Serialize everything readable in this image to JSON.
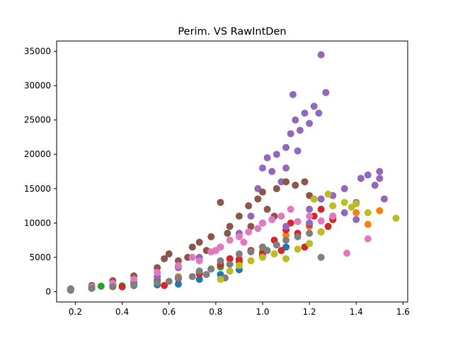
{
  "chart_data": {
    "type": "scatter",
    "title": "Perim. VS RawIntDen",
    "xlabel": "",
    "ylabel": "",
    "xlim": [
      0.12,
      1.62
    ],
    "ylim": [
      -1500,
      36500
    ],
    "xticks": [
      0.2,
      0.4,
      0.6,
      0.8,
      1.0,
      1.2,
      1.4,
      1.6
    ],
    "xtick_labels": [
      "0.2",
      "0.4",
      "0.6",
      "0.8",
      "1.0",
      "1.2",
      "1.4",
      "1.6"
    ],
    "yticks": [
      0,
      5000,
      10000,
      15000,
      20000,
      25000,
      30000,
      35000
    ],
    "ytick_labels": [
      "0",
      "5000",
      "10000",
      "15000",
      "20000",
      "25000",
      "30000",
      "35000"
    ],
    "grid": false,
    "legend": "none",
    "series": [
      {
        "color": "#1f77b4",
        "points": [
          [
            0.18,
            250
          ],
          [
            0.27,
            500
          ],
          [
            0.36,
            800
          ],
          [
            0.45,
            900
          ],
          [
            0.55,
            1000
          ],
          [
            0.64,
            1100
          ],
          [
            0.73,
            1800
          ],
          [
            0.82,
            2500
          ],
          [
            0.9,
            3200
          ],
          [
            1.0,
            5200
          ],
          [
            1.1,
            6500
          ],
          [
            1.2,
            7000
          ]
        ]
      },
      {
        "color": "#ff7f0e",
        "points": [
          [
            0.18,
            300
          ],
          [
            0.27,
            600
          ],
          [
            0.36,
            900
          ],
          [
            0.45,
            1200
          ],
          [
            0.55,
            1800
          ],
          [
            0.64,
            2200
          ],
          [
            0.73,
            2800
          ],
          [
            0.82,
            3800
          ],
          [
            0.9,
            4800
          ],
          [
            1.0,
            6500
          ],
          [
            1.1,
            8200
          ],
          [
            1.2,
            9500
          ],
          [
            1.3,
            10500
          ],
          [
            1.4,
            11500
          ],
          [
            1.45,
            9800
          ],
          [
            1.5,
            11800
          ]
        ]
      },
      {
        "color": "#2ca02c",
        "points": [
          [
            0.18,
            350
          ],
          [
            0.27,
            650
          ],
          [
            0.31,
            800
          ],
          [
            0.36,
            1000
          ],
          [
            0.4,
            850
          ],
          [
            0.45,
            1300
          ],
          [
            0.55,
            1600
          ],
          [
            0.64,
            2000
          ],
          [
            0.73,
            2700
          ],
          [
            0.82,
            3600
          ],
          [
            0.9,
            4300
          ],
          [
            1.0,
            5800
          ]
        ]
      },
      {
        "color": "#d62728",
        "points": [
          [
            0.18,
            300
          ],
          [
            0.27,
            550
          ],
          [
            0.36,
            850
          ],
          [
            0.4,
            700
          ],
          [
            0.45,
            1100
          ],
          [
            0.55,
            1500
          ],
          [
            0.58,
            900
          ],
          [
            0.64,
            1900
          ],
          [
            0.73,
            2600
          ],
          [
            0.78,
            3300
          ],
          [
            0.82,
            4000
          ],
          [
            0.86,
            4800
          ],
          [
            0.9,
            4600
          ],
          [
            0.95,
            6000
          ],
          [
            1.0,
            5500
          ],
          [
            1.05,
            7500
          ],
          [
            1.1,
            9000
          ],
          [
            1.12,
            10000
          ],
          [
            1.15,
            8500
          ],
          [
            1.2,
            9800
          ],
          [
            1.22,
            11000
          ],
          [
            1.25,
            12000
          ],
          [
            1.28,
            9500
          ],
          [
            1.3,
            10500
          ],
          [
            1.18,
            6500
          ],
          [
            1.08,
            6000
          ],
          [
            1.25,
            8700
          ]
        ]
      },
      {
        "color": "#9467bd",
        "points": [
          [
            0.18,
            200
          ],
          [
            0.27,
            500
          ],
          [
            0.36,
            900
          ],
          [
            0.45,
            1400
          ],
          [
            0.55,
            2200
          ],
          [
            0.64,
            3500
          ],
          [
            0.73,
            5000
          ],
          [
            0.82,
            6500
          ],
          [
            0.9,
            8500
          ],
          [
            0.95,
            11000
          ],
          [
            0.98,
            15000
          ],
          [
            1.0,
            18000
          ],
          [
            1.02,
            19500
          ],
          [
            1.04,
            17500
          ],
          [
            1.06,
            20000
          ],
          [
            1.08,
            16000
          ],
          [
            1.1,
            21000
          ],
          [
            1.12,
            23000
          ],
          [
            1.14,
            25000
          ],
          [
            1.16,
            23500
          ],
          [
            1.18,
            26000
          ],
          [
            1.2,
            24500
          ],
          [
            1.22,
            27000
          ],
          [
            1.24,
            26000
          ],
          [
            1.25,
            34500
          ],
          [
            1.27,
            29000
          ],
          [
            1.13,
            28700
          ],
          [
            1.1,
            18000
          ],
          [
            1.15,
            20500
          ],
          [
            1.2,
            12000
          ],
          [
            1.25,
            13500
          ],
          [
            1.3,
            14000
          ],
          [
            1.35,
            15000
          ],
          [
            1.4,
            13000
          ],
          [
            1.42,
            16500
          ],
          [
            1.45,
            17000
          ],
          [
            1.48,
            15500
          ],
          [
            1.5,
            16500
          ],
          [
            1.5,
            17500
          ],
          [
            1.52,
            13500
          ],
          [
            1.35,
            11500
          ],
          [
            1.4,
            10500
          ],
          [
            1.3,
            11000
          ],
          [
            1.2,
            10000
          ],
          [
            1.1,
            9500
          ],
          [
            1.0,
            10000
          ]
        ]
      },
      {
        "color": "#8c564b",
        "points": [
          [
            0.18,
            400
          ],
          [
            0.27,
            900
          ],
          [
            0.36,
            1600
          ],
          [
            0.45,
            2300
          ],
          [
            0.55,
            3500
          ],
          [
            0.58,
            4800
          ],
          [
            0.6,
            5500
          ],
          [
            0.64,
            4500
          ],
          [
            0.7,
            6500
          ],
          [
            0.73,
            7200
          ],
          [
            0.78,
            8000
          ],
          [
            0.82,
            13000
          ],
          [
            0.86,
            9500
          ],
          [
            0.9,
            11000
          ],
          [
            0.94,
            12500
          ],
          [
            0.98,
            13500
          ],
          [
            1.0,
            14500
          ],
          [
            1.02,
            12000
          ],
          [
            1.06,
            15000
          ],
          [
            1.1,
            16000
          ],
          [
            1.14,
            15500
          ],
          [
            1.18,
            16000
          ],
          [
            1.2,
            14000
          ],
          [
            1.22,
            13500
          ],
          [
            1.05,
            11000
          ],
          [
            0.95,
            9500
          ],
          [
            0.85,
            8500
          ],
          [
            0.76,
            6000
          ],
          [
            0.68,
            5000
          ]
        ]
      },
      {
        "color": "#e377c2",
        "points": [
          [
            0.18,
            300
          ],
          [
            0.27,
            700
          ],
          [
            0.36,
            1200
          ],
          [
            0.45,
            1800
          ],
          [
            0.55,
            2800
          ],
          [
            0.64,
            3800
          ],
          [
            0.7,
            5000
          ],
          [
            0.73,
            4500
          ],
          [
            0.78,
            5800
          ],
          [
            0.82,
            6500
          ],
          [
            0.86,
            7500
          ],
          [
            0.9,
            8000
          ],
          [
            0.94,
            8700
          ],
          [
            0.98,
            9200
          ],
          [
            1.0,
            10000
          ],
          [
            1.04,
            10500
          ],
          [
            1.08,
            11000
          ],
          [
            1.12,
            12000
          ],
          [
            1.15,
            10200
          ],
          [
            1.2,
            11000
          ],
          [
            1.25,
            10300
          ],
          [
            1.3,
            11000
          ],
          [
            1.36,
            5600
          ],
          [
            1.45,
            7700
          ],
          [
            0.8,
            6000
          ],
          [
            0.92,
            7200
          ]
        ]
      },
      {
        "color": "#7f7f7f",
        "points": [
          [
            0.18,
            300
          ],
          [
            0.27,
            500
          ],
          [
            0.36,
            700
          ],
          [
            0.45,
            1000
          ],
          [
            0.55,
            1300
          ],
          [
            0.6,
            1500
          ],
          [
            0.64,
            2000
          ],
          [
            0.7,
            2200
          ],
          [
            0.73,
            3000
          ],
          [
            0.78,
            3300
          ],
          [
            0.82,
            4500
          ],
          [
            0.86,
            4000
          ],
          [
            0.9,
            5500
          ],
          [
            0.95,
            5800
          ],
          [
            1.0,
            6500
          ],
          [
            1.02,
            6000
          ],
          [
            1.06,
            6800
          ],
          [
            1.1,
            7500
          ],
          [
            1.15,
            8000
          ],
          [
            1.2,
            8500
          ],
          [
            1.25,
            5000
          ],
          [
            0.84,
            2000
          ],
          [
            0.76,
            2500
          ]
        ]
      },
      {
        "color": "#bcbd22",
        "points": [
          [
            0.82,
            1800
          ],
          [
            0.86,
            3000
          ],
          [
            0.9,
            3800
          ],
          [
            0.95,
            4500
          ],
          [
            1.0,
            5000
          ],
          [
            1.05,
            5500
          ],
          [
            1.1,
            4800
          ],
          [
            1.15,
            6200
          ],
          [
            1.2,
            7000
          ],
          [
            1.25,
            8700
          ],
          [
            1.3,
            12500
          ],
          [
            1.35,
            13000
          ],
          [
            1.38,
            12300
          ],
          [
            1.4,
            12800
          ],
          [
            1.45,
            11500
          ],
          [
            1.57,
            10700
          ],
          [
            1.22,
            13500
          ],
          [
            1.28,
            14200
          ]
        ]
      }
    ]
  }
}
